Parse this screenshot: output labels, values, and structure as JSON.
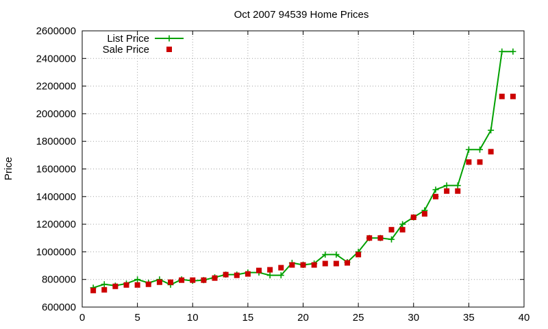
{
  "chart_data": {
    "type": "line",
    "title": "Oct 2007 94539 Home Prices",
    "xlabel": "",
    "ylabel": "Price",
    "xlim": [
      0,
      40
    ],
    "ylim": [
      600000,
      2600000
    ],
    "x_ticks": [
      "0",
      "5",
      "10",
      "15",
      "20",
      "25",
      "30",
      "35",
      "40"
    ],
    "y_ticks": [
      "600000",
      "800000",
      "1000000",
      "1200000",
      "1400000",
      "1600000",
      "1800000",
      "2000000",
      "2200000",
      "2400000",
      "2600000"
    ],
    "grid": true,
    "legend_position": "top-left",
    "series": [
      {
        "name": "List Price",
        "style": "line-with-plus-markers",
        "color": "#00a000",
        "x": [
          1,
          2,
          3,
          4,
          5,
          6,
          7,
          8,
          9,
          10,
          11,
          12,
          13,
          14,
          15,
          16,
          17,
          18,
          19,
          20,
          21,
          22,
          23,
          24,
          25,
          26,
          27,
          28,
          29,
          30,
          31,
          32,
          33,
          34,
          35,
          36,
          37,
          38,
          39
        ],
        "y": [
          740000,
          765000,
          755000,
          770000,
          800000,
          775000,
          800000,
          762000,
          800000,
          790000,
          795000,
          815000,
          835000,
          835000,
          850000,
          850000,
          830000,
          830000,
          920000,
          905000,
          915000,
          980000,
          980000,
          925000,
          1000000,
          1100000,
          1100000,
          1090000,
          1200000,
          1250000,
          1300000,
          1450000,
          1480000,
          1480000,
          1740000,
          1740000,
          1880000,
          2450000,
          2450000
        ]
      },
      {
        "name": "Sale Price",
        "style": "square-markers",
        "color": "#cc0000",
        "x": [
          1,
          2,
          3,
          4,
          5,
          6,
          7,
          8,
          9,
          10,
          11,
          12,
          13,
          14,
          15,
          16,
          17,
          18,
          19,
          20,
          21,
          22,
          23,
          24,
          25,
          26,
          27,
          28,
          29,
          30,
          31,
          32,
          33,
          34,
          35,
          36,
          37,
          38,
          39
        ],
        "y": [
          720000,
          725000,
          750000,
          760000,
          760000,
          765000,
          780000,
          780000,
          795000,
          795000,
          795000,
          810000,
          835000,
          830000,
          840000,
          865000,
          870000,
          885000,
          905000,
          905000,
          905000,
          915000,
          915000,
          920000,
          980000,
          1100000,
          1100000,
          1160000,
          1160000,
          1250000,
          1275000,
          1400000,
          1440000,
          1440000,
          1650000,
          1650000,
          1725000,
          2125000,
          2125000
        ]
      }
    ]
  }
}
